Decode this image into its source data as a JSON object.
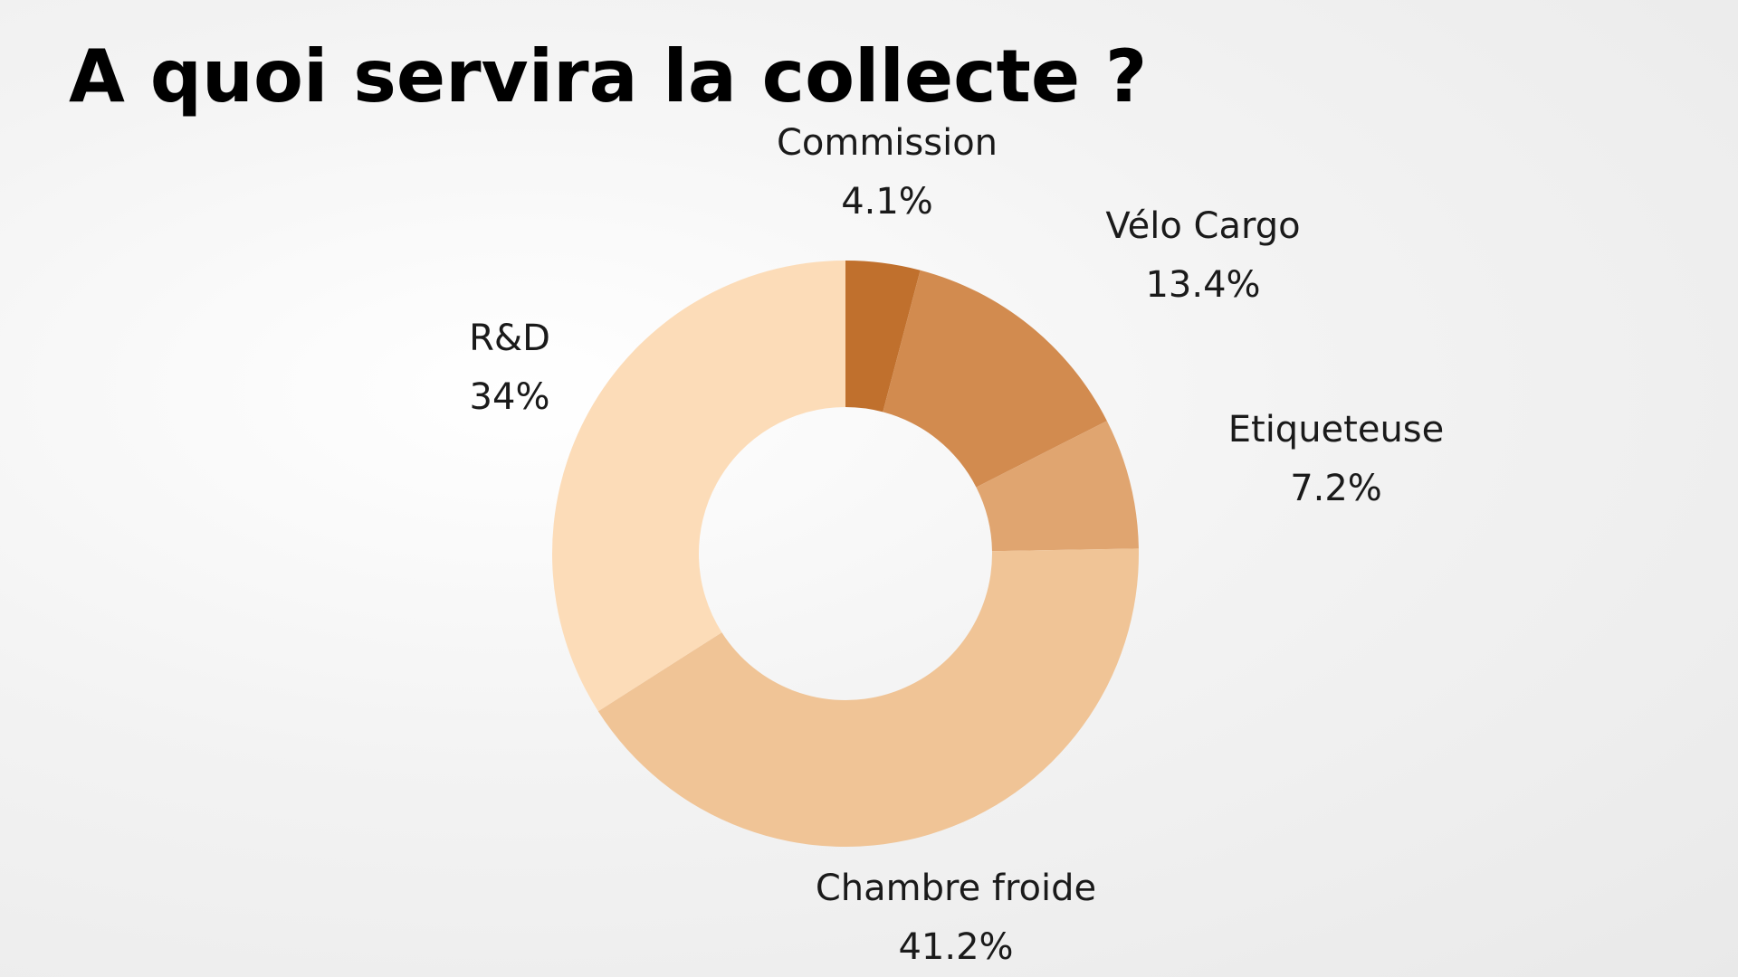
{
  "chart_data": {
    "type": "donut",
    "title": "A quoi servira la collecte ?",
    "categories": [
      "Commission",
      "Vélo Cargo",
      "Etiqueteuse",
      "Chambre froide",
      "R&D"
    ],
    "values": [
      4.1,
      13.4,
      7.2,
      41.2,
      34
    ],
    "value_labels": [
      "4.1%",
      "13.4%",
      "7.2%",
      "41.2%",
      "34%"
    ],
    "colors": [
      "#c0702d",
      "#d28b4f",
      "#e0a570",
      "#f0c496",
      "#fcdcb8"
    ]
  }
}
